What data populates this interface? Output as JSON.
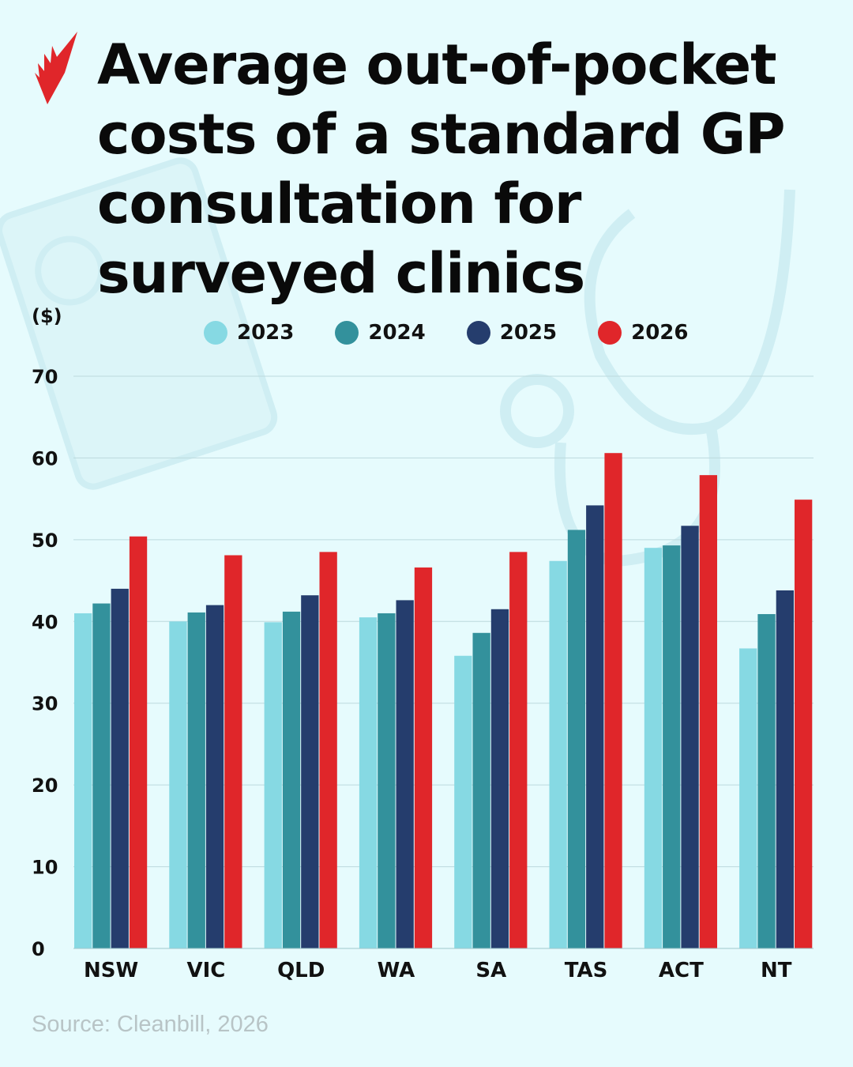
{
  "title": "Average out-of-pocket costs of a standard GP consultation for surveyed clinics",
  "source": "Source: Cleanbill, 2026",
  "logo": "SBS",
  "chart_data": {
    "type": "bar",
    "title": "Average out-of-pocket costs of a standard GP consultation for surveyed clinics",
    "ylabel": "($)",
    "xlabel": "",
    "ylim": [
      0,
      70
    ],
    "yticks": [
      0,
      10,
      20,
      30,
      40,
      50,
      60,
      70
    ],
    "grid": true,
    "legend_position": "top",
    "categories": [
      "NSW",
      "VIC",
      "QLD",
      "WA",
      "SA",
      "TAS",
      "ACT",
      "NT"
    ],
    "series": [
      {
        "name": "2023",
        "color": "#86d9e3",
        "values": [
          41.0,
          40.0,
          39.9,
          40.5,
          35.8,
          47.4,
          49.0,
          36.7
        ]
      },
      {
        "name": "2024",
        "color": "#33919c",
        "values": [
          42.2,
          41.1,
          41.2,
          41.0,
          38.6,
          51.2,
          49.3,
          40.9
        ]
      },
      {
        "name": "2025",
        "color": "#253d6d",
        "values": [
          44.0,
          42.0,
          43.2,
          42.6,
          41.5,
          54.2,
          51.7,
          43.8
        ]
      },
      {
        "name": "2026",
        "color": "#e0262a",
        "values": [
          50.4,
          48.1,
          48.5,
          46.6,
          48.5,
          60.6,
          57.9,
          54.9
        ]
      }
    ]
  }
}
